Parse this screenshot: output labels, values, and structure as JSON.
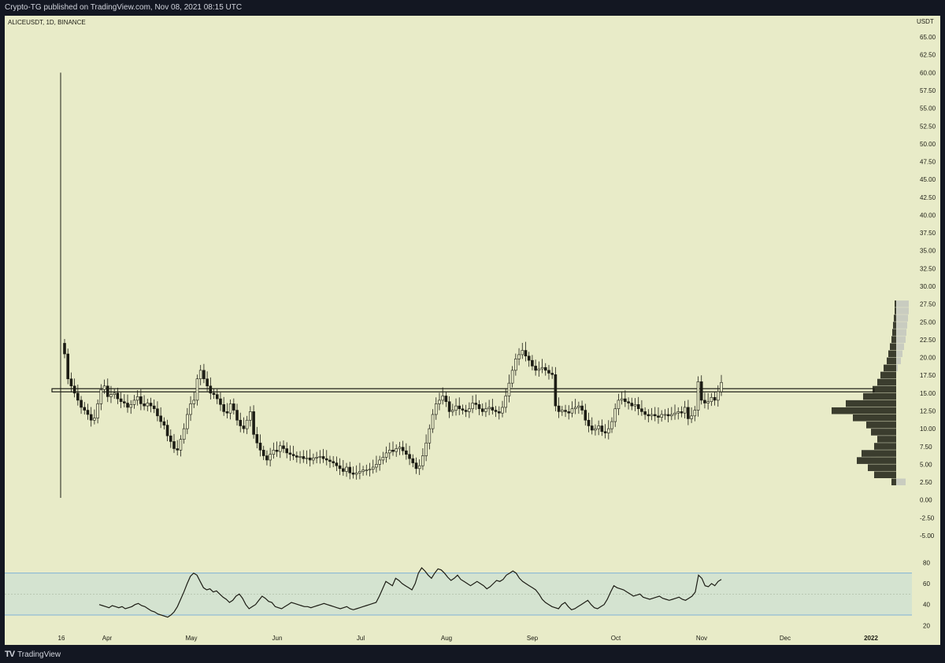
{
  "header": {
    "published_by": "Crypto-TG published on TradingView.com, Nov 08, 2021 08:15 UTC"
  },
  "footer": {
    "logo_icon": "tradingview-logo-icon",
    "brand": "TradingView"
  },
  "colors": {
    "plot_background": "#e8ebc8",
    "frame": "#131722",
    "candle": "#1c1c14",
    "rsi_band_fill": "#d4e3d0",
    "rsi_band_line": "#7fb2d6",
    "level_line": "#1c1c14",
    "volume_profile_bar": "#3b3d2e",
    "volume_profile_bg": "#c9ccc0"
  },
  "chart_data": [
    {
      "type": "candlestick",
      "symbol": "ALICEUSDT, 1D, BINANCE",
      "currency": "USDT",
      "ylim": [
        -6,
        66
      ],
      "y_ticks": [
        "65.00",
        "62.50",
        "60.00",
        "57.50",
        "55.00",
        "52.50",
        "50.00",
        "47.50",
        "45.00",
        "42.50",
        "40.00",
        "37.50",
        "35.00",
        "32.50",
        "30.00",
        "27.50",
        "25.00",
        "22.50",
        "20.00",
        "17.50",
        "15.00",
        "12.50",
        "10.00",
        "7.50",
        "5.00",
        "2.50",
        "0.00",
        "-2.50",
        "-5.00"
      ],
      "x_ticks": [
        "16",
        "Apr",
        "May",
        "Jun",
        "Jul",
        "Aug",
        "Sep",
        "Oct",
        "Nov",
        "Dec",
        "2022"
      ],
      "horizontal_level": 15.4,
      "spike": {
        "high": 60.0,
        "low": 0.3
      },
      "series_close": [
        20.5,
        17,
        16,
        15,
        14,
        13,
        12.6,
        12,
        11.2,
        11.5,
        13.5,
        15.5,
        16,
        14.5,
        14.8,
        15,
        14.2,
        13.8,
        13.6,
        13,
        13.4,
        14,
        14.5,
        13.5,
        13.2,
        13.6,
        13.2,
        12.8,
        11.8,
        11,
        10.5,
        9,
        8.2,
        7.2,
        7,
        8.5,
        10,
        12,
        13.5,
        14,
        17,
        18.2,
        17,
        16,
        15,
        14.8,
        14.2,
        13.4,
        12.4,
        12.2,
        13.5,
        12.6,
        11.2,
        10.4,
        10,
        11.2,
        12.4,
        9.2,
        8,
        7,
        6.2,
        5.6,
        6.4,
        7,
        6.8,
        7.6,
        7.2,
        6.6,
        6.4,
        6.2,
        6,
        6.1,
        5.8,
        5.9,
        5.6,
        5.9,
        6,
        6.1,
        5.8,
        5.6,
        5.4,
        5.2,
        4.8,
        4.4,
        4,
        4.6,
        3.8,
        3.6,
        3.8,
        4,
        4.2,
        4.2,
        4.3,
        4.6,
        5,
        5.6,
        6,
        6.6,
        7,
        6.8,
        7.2,
        7.4,
        6.9,
        6.4,
        5.8,
        5.2,
        4.4,
        4.8,
        6.2,
        8,
        10,
        12,
        13.5,
        14,
        14.6,
        13.8,
        12.4,
        12.6,
        13.2,
        12.8,
        12.6,
        12.4,
        12.8,
        13.6,
        13.4,
        12.8,
        12.4,
        12.8,
        13,
        12.6,
        12.4,
        12.2,
        13,
        14.6,
        16.4,
        18.2,
        19.8,
        20.4,
        21,
        20.2,
        19.6,
        18.8,
        18.2,
        18.4,
        18.6,
        18.2,
        17.8,
        17.6,
        13.2,
        12.4,
        12.6,
        12.4,
        12.2,
        12.8,
        13,
        13.2,
        12.6,
        11.2,
        10.4,
        9.8,
        10,
        10.4,
        9.6,
        9.4,
        10,
        11,
        12.8,
        14,
        14.2,
        13.8,
        13.6,
        13.2,
        13.4,
        12.8,
        12.4,
        12,
        11.8,
        12,
        11.8,
        11.6,
        12,
        12,
        11.8,
        12,
        12.2,
        12.4,
        12.2,
        13,
        11.4,
        11.8,
        12.6,
        16.6,
        14,
        13.6,
        13.8,
        14.4,
        14,
        15.2,
        16.5
      ]
    },
    {
      "type": "rsi",
      "levels": {
        "upper": 70,
        "middle": 50,
        "lower": 30
      },
      "ylim": [
        18,
        84
      ],
      "y_ticks": [
        "80",
        "60",
        "40",
        "20"
      ],
      "values": [
        40,
        39,
        38,
        37,
        39,
        38,
        37,
        38,
        36,
        37,
        38,
        40,
        41,
        39,
        38,
        36,
        34,
        33,
        31,
        30,
        29,
        28,
        30,
        33,
        38,
        45,
        52,
        60,
        67,
        70,
        68,
        62,
        56,
        54,
        55,
        52,
        53,
        50,
        47,
        45,
        42,
        44,
        48,
        50,
        46,
        40,
        36,
        38,
        40,
        44,
        48,
        46,
        43,
        42,
        38,
        37,
        36,
        38,
        40,
        42,
        41,
        40,
        39,
        38,
        38,
        37,
        38,
        39,
        40,
        41,
        40,
        39,
        38,
        37,
        36,
        37,
        38,
        36,
        35,
        36,
        37,
        38,
        39,
        40,
        41,
        42,
        48,
        55,
        62,
        60,
        58,
        65,
        63,
        60,
        58,
        56,
        54,
        60,
        70,
        75,
        72,
        68,
        65,
        70,
        74,
        73,
        70,
        66,
        63,
        65,
        68,
        64,
        62,
        60,
        58,
        60,
        62,
        60,
        58,
        55,
        57,
        60,
        63,
        62,
        64,
        68,
        70,
        72,
        70,
        65,
        62,
        60,
        58,
        56,
        54,
        50,
        45,
        42,
        40,
        38,
        37,
        36,
        40,
        42,
        38,
        35,
        36,
        38,
        40,
        42,
        44,
        40,
        37,
        36,
        38,
        40,
        45,
        52,
        58,
        56,
        55,
        54,
        52,
        50,
        48,
        49,
        50,
        47,
        46,
        45,
        46,
        47,
        48,
        46,
        45,
        44,
        45,
        46,
        47,
        45,
        44,
        46,
        48,
        52,
        68,
        65,
        58,
        57,
        60,
        58,
        62,
        64
      ]
    }
  ],
  "volume_profile": {
    "rows": [
      {
        "price": 27.5,
        "width": 2
      },
      {
        "price": 26.5,
        "width": 2
      },
      {
        "price": 25.5,
        "width": 3
      },
      {
        "price": 24.5,
        "width": 4
      },
      {
        "price": 23.5,
        "width": 5
      },
      {
        "price": 22.5,
        "width": 6
      },
      {
        "price": 21.5,
        "width": 8
      },
      {
        "price": 20.5,
        "width": 10
      },
      {
        "price": 19.5,
        "width": 12
      },
      {
        "price": 18.5,
        "width": 16
      },
      {
        "price": 17.5,
        "width": 20
      },
      {
        "price": 16.5,
        "width": 24
      },
      {
        "price": 15.5,
        "width": 30
      },
      {
        "price": 14.5,
        "width": 42
      },
      {
        "price": 13.5,
        "width": 64
      },
      {
        "price": 12.5,
        "width": 82
      },
      {
        "price": 11.5,
        "width": 55
      },
      {
        "price": 10.5,
        "width": 38
      },
      {
        "price": 9.5,
        "width": 32
      },
      {
        "price": 8.5,
        "width": 24
      },
      {
        "price": 7.5,
        "width": 28
      },
      {
        "price": 6.5,
        "width": 44
      },
      {
        "price": 5.5,
        "width": 50
      },
      {
        "price": 4.5,
        "width": 36
      },
      {
        "price": 3.5,
        "width": 28
      },
      {
        "price": 2.5,
        "width": 6
      }
    ]
  }
}
